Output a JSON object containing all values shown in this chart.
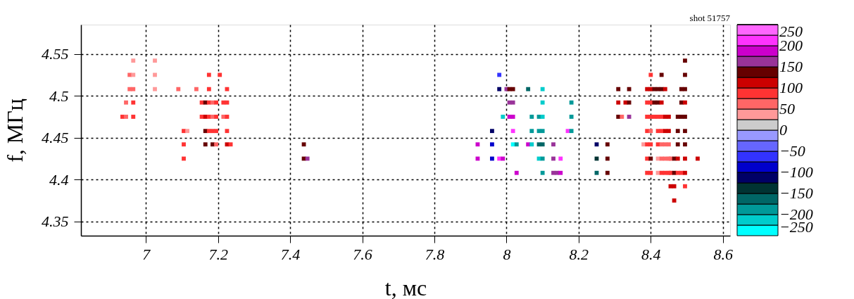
{
  "chart_data": {
    "type": "scatter",
    "xlabel": "t, мс",
    "ylabel": "f, МГц",
    "annotations": [
      "shot 51757"
    ],
    "marker": "square",
    "grid": true,
    "xlim": [
      6.82,
      8.62
    ],
    "xticks": [
      7,
      7.2,
      7.4,
      7.6,
      7.8,
      8,
      8.2,
      8.4,
      8.6
    ],
    "ylim": [
      4.333,
      4.585
    ],
    "yticks": [
      4.35,
      4.4,
      4.45,
      4.5,
      4.55
    ],
    "clim": [
      -250,
      250
    ],
    "cticks": [
      {
        "value": -250,
        "label": "−250"
      },
      {
        "value": -200,
        "label": "−200"
      },
      {
        "value": -150,
        "label": "−150"
      },
      {
        "value": -100,
        "label": "−100"
      },
      {
        "value": -50,
        "label": "−50"
      },
      0,
      50,
      100,
      150,
      200,
      250
    ],
    "x": [
      6.935,
      6.945,
      6.945,
      6.955,
      6.955,
      6.965,
      6.965,
      6.965,
      6.965,
      6.965,
      7.025,
      7.025,
      7.025,
      7.09,
      7.14,
      7.105,
      7.105,
      7.105,
      7.115,
      7.155,
      7.155,
      7.165,
      7.165,
      7.165,
      7.165,
      7.175,
      7.175,
      7.175,
      7.175,
      7.175,
      7.185,
      7.185,
      7.185,
      7.185,
      7.195,
      7.195,
      7.195,
      7.195,
      7.205,
      7.215,
      7.215,
      7.225,
      7.225,
      7.225,
      7.225,
      7.225,
      7.235,
      7.438,
      7.438,
      7.448,
      7.92,
      7.92,
      7.96,
      7.96,
      7.96,
      7.98,
      7.98,
      7.98,
      7.99,
      7.99,
      8.0,
      8.008,
      8.008,
      8.008,
      8.018,
      8.018,
      8.018,
      8.018,
      8.018,
      8.028,
      8.028,
      8.06,
      8.06,
      8.07,
      8.07,
      8.07,
      8.09,
      8.09,
      8.09,
      8.09,
      8.1,
      8.1,
      8.1,
      8.1,
      8.1,
      8.1,
      8.1,
      8.13,
      8.13,
      8.13,
      8.14,
      8.15,
      8.15,
      8.17,
      8.18,
      8.18,
      8.18,
      8.25,
      8.25,
      8.25,
      8.28,
      8.28,
      8.28,
      8.31,
      8.31,
      8.31,
      8.32,
      8.33,
      8.34,
      8.34,
      8.34,
      8.38,
      8.39,
      8.39,
      8.39,
      8.39,
      8.39,
      8.39,
      8.39,
      8.4,
      8.4,
      8.4,
      8.4,
      8.4,
      8.4,
      8.4,
      8.4,
      8.41,
      8.41,
      8.41,
      8.42,
      8.42,
      8.42,
      8.42,
      8.42,
      8.42,
      8.42,
      8.43,
      8.43,
      8.43,
      8.43,
      8.43,
      8.43,
      8.43,
      8.43,
      8.44,
      8.44,
      8.44,
      8.44,
      8.44,
      8.44,
      8.45,
      8.45,
      8.45,
      8.45,
      8.45,
      8.455,
      8.455,
      8.455,
      8.465,
      8.465,
      8.465,
      8.465,
      8.475,
      8.475,
      8.475,
      8.475,
      8.475,
      8.485,
      8.485,
      8.485,
      8.485,
      8.495,
      8.495,
      8.495,
      8.495,
      8.495,
      8.495,
      8.495,
      8.495,
      8.495,
      8.495,
      8.53
    ],
    "values": [
      4.475,
      4.492,
      4.475,
      4.525,
      4.508,
      4.542,
      4.525,
      4.508,
      4.492,
      4.475,
      4.542,
      4.525,
      4.508,
      4.508,
      4.508,
      4.458,
      4.442,
      4.425,
      4.458,
      4.492,
      4.475,
      4.492,
      4.475,
      4.458,
      4.442,
      4.525,
      4.508,
      4.492,
      4.475,
      4.458,
      4.492,
      4.475,
      4.458,
      4.442,
      4.492,
      4.475,
      4.458,
      4.442,
      4.525,
      4.492,
      4.475,
      4.508,
      4.492,
      4.475,
      4.458,
      4.442,
      4.442,
      4.442,
      4.425,
      4.425,
      4.442,
      4.425,
      4.458,
      4.442,
      4.425,
      4.525,
      4.508,
      4.425,
      4.475,
      4.425,
      4.508,
      4.508,
      4.492,
      4.475,
      4.508,
      4.492,
      4.475,
      4.458,
      4.442,
      4.442,
      4.408,
      4.508,
      4.442,
      4.475,
      4.458,
      4.442,
      4.475,
      4.458,
      4.442,
      4.425,
      4.508,
      4.492,
      4.475,
      4.458,
      4.442,
      4.425,
      4.408,
      4.442,
      4.425,
      4.408,
      4.408,
      4.425,
      4.408,
      4.458,
      4.492,
      4.475,
      4.458,
      4.442,
      4.425,
      4.408,
      4.442,
      4.425,
      4.408,
      4.508,
      4.492,
      4.475,
      4.475,
      4.492,
      4.508,
      4.492,
      4.475,
      4.442,
      4.508,
      4.492,
      4.475,
      4.458,
      4.442,
      4.425,
      4.408,
      4.525,
      4.508,
      4.492,
      4.475,
      4.458,
      4.442,
      4.425,
      4.408,
      4.508,
      4.492,
      4.475,
      4.508,
      4.492,
      4.475,
      4.458,
      4.442,
      4.425,
      4.408,
      4.525,
      4.508,
      4.492,
      4.475,
      4.458,
      4.442,
      4.425,
      4.408,
      4.508,
      4.475,
      4.458,
      4.442,
      4.425,
      4.408,
      4.475,
      4.458,
      4.442,
      4.425,
      4.408,
      4.425,
      4.408,
      4.392,
      4.425,
      4.408,
      4.392,
      4.375,
      4.475,
      4.458,
      4.442,
      4.425,
      4.408,
      4.508,
      4.492,
      4.475,
      4.408,
      4.542,
      4.525,
      4.508,
      4.492,
      4.475,
      4.458,
      4.442,
      4.425,
      4.408,
      4.392,
      4.425
    ],
    "cvalues": [
      87,
      62,
      62,
      62,
      62,
      37,
      37,
      62,
      87,
      87,
      37,
      37,
      37,
      62,
      62,
      87,
      87,
      87,
      37,
      87,
      87,
      137,
      112,
      137,
      137,
      87,
      87,
      87,
      87,
      87,
      62,
      62,
      87,
      137,
      87,
      87,
      87,
      62,
      87,
      87,
      62,
      87,
      87,
      87,
      87,
      112,
      87,
      137,
      137,
      162,
      187,
      187,
      -112,
      -87,
      -87,
      -62,
      -112,
      212,
      -212,
      187,
      162,
      137,
      162,
      187,
      137,
      162,
      187,
      212,
      -237,
      -187,
      187,
      -162,
      187,
      -187,
      -187,
      -212,
      -187,
      -187,
      -162,
      -212,
      -212,
      -212,
      -212,
      -187,
      -162,
      -187,
      -187,
      162,
      162,
      162,
      162,
      212,
      187,
      212,
      -187,
      -187,
      -187,
      -112,
      -137,
      -162,
      137,
      137,
      137,
      137,
      112,
      137,
      62,
      112,
      137,
      137,
      162,
      37,
      112,
      87,
      87,
      87,
      87,
      87,
      87,
      87,
      112,
      87,
      87,
      62,
      87,
      137,
      87,
      137,
      137,
      87,
      137,
      137,
      87,
      87,
      87,
      37,
      37,
      137,
      137,
      112,
      87,
      87,
      62,
      62,
      87,
      112,
      112,
      112,
      62,
      62,
      87,
      112,
      112,
      62,
      62,
      87,
      62,
      87,
      112,
      137,
      137,
      112,
      112,
      137,
      137,
      137,
      112,
      87,
      137,
      137,
      137,
      87,
      137,
      137,
      137,
      112,
      137,
      137,
      137,
      112,
      112,
      87,
      112
    ]
  }
}
